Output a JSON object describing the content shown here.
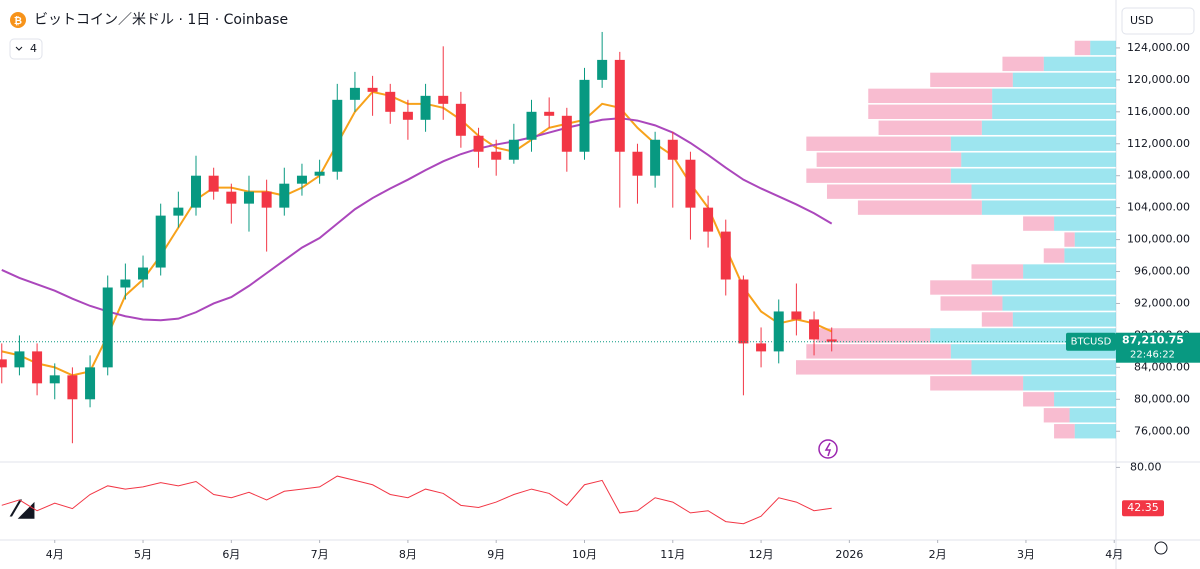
{
  "header": {
    "title": "ビットコイン／米ドル · 1日 · Coinbase",
    "indicator_count": "4",
    "currency": "USD"
  },
  "chart_data": {
    "type": "candlestick",
    "xlim": [
      3.38,
      16.02
    ],
    "xticks": [
      {
        "value": 4,
        "label": "4月"
      },
      {
        "value": 5,
        "label": "5月"
      },
      {
        "value": 6,
        "label": "6月"
      },
      {
        "value": 7,
        "label": "7月"
      },
      {
        "value": 8,
        "label": "8月"
      },
      {
        "value": 9,
        "label": "9月"
      },
      {
        "value": 10,
        "label": "10月"
      },
      {
        "value": 11,
        "label": "11月"
      },
      {
        "value": 12,
        "label": "12月"
      },
      {
        "value": 13,
        "label": "2026"
      },
      {
        "value": 14,
        "label": "2月"
      },
      {
        "value": 15,
        "label": "3月"
      },
      {
        "value": 16,
        "label": "4月"
      }
    ],
    "ylim": [
      72400,
      130000
    ],
    "yticks": [
      {
        "value": 76000,
        "label": "76,000.00"
      },
      {
        "value": 80000,
        "label": "80,000.00"
      },
      {
        "value": 84000,
        "label": "84,000.00"
      },
      {
        "value": 88000,
        "label": "88,000.00"
      },
      {
        "value": 92000,
        "label": "92,000.00"
      },
      {
        "value": 96000,
        "label": "96,000.00"
      },
      {
        "value": 100000,
        "label": "100,000.00"
      },
      {
        "value": 104000,
        "label": "104,000.00"
      },
      {
        "value": 108000,
        "label": "108,000.00"
      },
      {
        "value": 112000,
        "label": "112,000.00"
      },
      {
        "value": 116000,
        "label": "116,000.00"
      },
      {
        "value": 120000,
        "label": "120,000.00"
      },
      {
        "value": 124000,
        "label": "124,000.00"
      }
    ],
    "x": [
      3.4,
      3.6,
      3.8,
      4.0,
      4.2,
      4.4,
      4.6,
      4.8,
      5.0,
      5.2,
      5.4,
      5.6,
      5.8,
      6.0,
      6.2,
      6.4,
      6.6,
      6.8,
      7.0,
      7.2,
      7.4,
      7.6,
      7.8,
      8.0,
      8.2,
      8.4,
      8.6,
      8.8,
      9.0,
      9.2,
      9.4,
      9.6,
      9.8,
      10.0,
      10.2,
      10.4,
      10.6,
      10.8,
      11.0,
      11.2,
      11.4,
      11.6,
      11.8,
      12.0,
      12.2,
      12.4,
      12.6,
      12.8
    ],
    "open": [
      85000,
      84000,
      86000,
      82000,
      83000,
      80000,
      84000,
      94000,
      95000,
      96500,
      103000,
      104000,
      108000,
      106000,
      104500,
      106000,
      104000,
      107000,
      108000,
      108500,
      117500,
      119000,
      118500,
      116000,
      115000,
      118000,
      117000,
      113000,
      111000,
      110000,
      112500,
      116000,
      115500,
      111000,
      120000,
      122500,
      111000,
      108000,
      112500,
      110000,
      104000,
      101000,
      95000,
      87000,
      86000,
      91000,
      90000,
      87500
    ],
    "high": [
      87000,
      88000,
      87000,
      84500,
      84000,
      85500,
      95500,
      97000,
      98000,
      104500,
      106000,
      110500,
      109000,
      107000,
      108000,
      107500,
      109000,
      109500,
      110000,
      119500,
      121000,
      120500,
      119500,
      117500,
      119500,
      124200,
      118500,
      114000,
      112500,
      114500,
      117500,
      117800,
      116500,
      121500,
      126000,
      123500,
      112000,
      113500,
      113500,
      111000,
      105500,
      102500,
      95500,
      89000,
      92500,
      94500,
      91000,
      89000
    ],
    "low": [
      82000,
      83000,
      80500,
      80000,
      74500,
      79000,
      83000,
      92500,
      94000,
      95500,
      101500,
      103000,
      105000,
      102000,
      101000,
      98500,
      103000,
      105500,
      107000,
      107500,
      116000,
      115500,
      114500,
      112500,
      113500,
      115000,
      111500,
      109000,
      108000,
      109500,
      111000,
      114000,
      108500,
      110000,
      119000,
      104000,
      104500,
      106500,
      104000,
      100000,
      99000,
      93000,
      80500,
      84000,
      84500,
      88000,
      85500,
      86000
    ],
    "close": [
      84000,
      86000,
      82000,
      83000,
      80000,
      84000,
      94000,
      95000,
      96500,
      103000,
      104000,
      108000,
      106000,
      104500,
      106000,
      104000,
      107000,
      108000,
      108500,
      117500,
      119000,
      118500,
      116000,
      115000,
      118000,
      117000,
      113000,
      111000,
      110000,
      112500,
      116000,
      115500,
      111000,
      120000,
      122500,
      111000,
      108000,
      112500,
      110000,
      104000,
      101000,
      95000,
      87000,
      86000,
      91000,
      90000,
      87500,
      87210.75
    ],
    "up_color": "#089981",
    "down_color": "#f23645",
    "series": [
      {
        "color": "#f7a21b",
        "values": [
          86000,
          85500,
          84500,
          84000,
          83000,
          83500,
          88000,
          93000,
          95000,
          98000,
          101500,
          105000,
          106500,
          106500,
          106000,
          106000,
          105500,
          106500,
          108000,
          112000,
          116000,
          118500,
          118000,
          117000,
          117000,
          116500,
          115000,
          113000,
          111500,
          111000,
          112500,
          114000,
          114500,
          115000,
          117000,
          116500,
          114000,
          112000,
          110500,
          107000,
          104000,
          99000,
          94000,
          91000,
          89500,
          90000,
          89500,
          88500
        ]
      },
      {
        "color": "#ab47bc",
        "values": [
          96200,
          95200,
          94400,
          93600,
          92600,
          91700,
          91000,
          90400,
          90000,
          89900,
          90100,
          90900,
          92000,
          92800,
          94200,
          95800,
          97400,
          99000,
          100200,
          102000,
          103800,
          105200,
          106400,
          107500,
          108700,
          109800,
          110700,
          111400,
          111900,
          112300,
          112800,
          113400,
          114000,
          114500,
          115000,
          115200,
          114900,
          114300,
          113400,
          112100,
          110600,
          109000,
          107500,
          106400,
          105400,
          104400,
          103300,
          102000
        ]
      }
    ],
    "symbol": "BTCUSD",
    "last_price": {
      "value": 87210.75,
      "label": "87,210.75"
    },
    "countdown": "22:46:22",
    "volume_profile": {
      "up_color": "#4dd0e1",
      "down_color": "#f48fb1",
      "levels": [
        76000,
        78000,
        80000,
        82000,
        84000,
        86000,
        88000,
        90000,
        92000,
        94000,
        96000,
        98000,
        100000,
        102000,
        104000,
        106000,
        108000,
        110000,
        112000,
        114000,
        116000,
        118000,
        120000,
        122000,
        124000
      ],
      "up": [
        40,
        45,
        60,
        90,
        140,
        160,
        180,
        100,
        110,
        120,
        90,
        50,
        40,
        60,
        130,
        140,
        160,
        150,
        160,
        130,
        120,
        120,
        100,
        70,
        25
      ],
      "down": [
        20,
        25,
        30,
        90,
        170,
        140,
        110,
        30,
        60,
        60,
        50,
        20,
        10,
        30,
        120,
        140,
        140,
        140,
        140,
        100,
        120,
        120,
        80,
        40,
        15
      ]
    },
    "rsi": {
      "color": "#f23645",
      "ylim": [
        13,
        85
      ],
      "yticks": [
        {
          "value": 80,
          "label": "80.00"
        }
      ],
      "values": [
        45,
        50,
        40,
        47,
        42,
        55,
        63,
        60,
        62,
        66,
        63,
        67,
        55,
        52,
        57,
        50,
        58,
        60,
        62,
        72,
        68,
        64,
        55,
        52,
        60,
        56,
        45,
        43,
        48,
        55,
        60,
        56,
        45,
        64,
        68,
        38,
        40,
        52,
        48,
        38,
        40,
        30,
        28,
        35,
        52,
        48,
        40,
        42.35
      ],
      "current": 42.35
    }
  }
}
